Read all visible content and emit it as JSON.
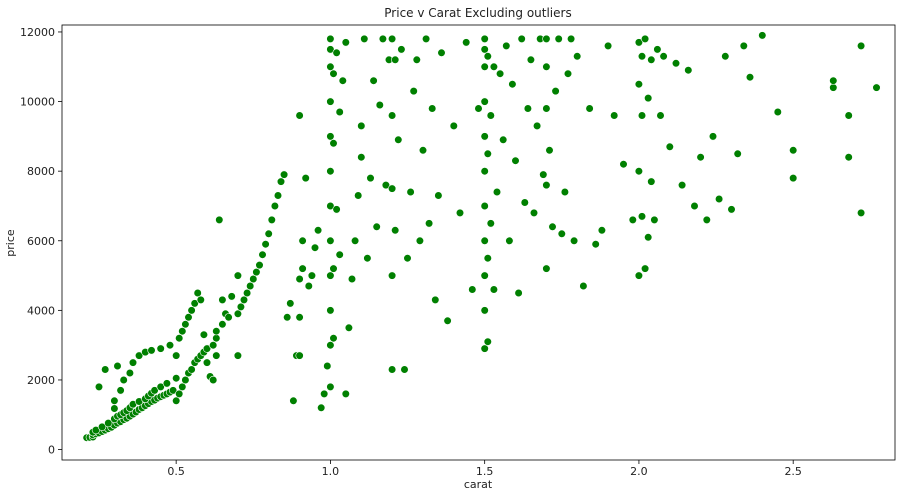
{
  "chart_data": {
    "type": "scatter",
    "title": "Price v Carat Excluding outliers",
    "xlabel": "carat",
    "ylabel": "price",
    "xlim": [
      0.13,
      2.83
    ],
    "ylim": [
      -300,
      12200
    ],
    "xticks": [
      0.5,
      1.0,
      1.5,
      2.0,
      2.5
    ],
    "xtick_labels": [
      "0.5",
      "1.0",
      "1.5",
      "2.0",
      "2.5"
    ],
    "yticks": [
      0,
      2000,
      4000,
      6000,
      8000,
      10000,
      12000
    ],
    "ytick_labels": [
      "0",
      "2000",
      "4000",
      "6000",
      "8000",
      "10000",
      "12000"
    ],
    "grid": false,
    "marker_color": "#008000",
    "marker_edge": "#ffffff",
    "series": [
      {
        "x": [
          0.21,
          0.22,
          0.23,
          0.23,
          0.24,
          0.25,
          0.26,
          0.27,
          0.28,
          0.29,
          0.3,
          0.31,
          0.32,
          0.33,
          0.34,
          0.35,
          0.36,
          0.37,
          0.38,
          0.39,
          0.4,
          0.41,
          0.42,
          0.43,
          0.44,
          0.45,
          0.46,
          0.47,
          0.48,
          0.49,
          0.23,
          0.24,
          0.26,
          0.28,
          0.3,
          0.3,
          0.31,
          0.32,
          0.33,
          0.34,
          0.35,
          0.36,
          0.38,
          0.4,
          0.41,
          0.42,
          0.43,
          0.45,
          0.47,
          0.5,
          0.25,
          0.27,
          0.3,
          0.31,
          0.32,
          0.33,
          0.35,
          0.36,
          0.38,
          0.4,
          0.42,
          0.45,
          0.48,
          0.5,
          0.51,
          0.52,
          0.53,
          0.54,
          0.55,
          0.56,
          0.57,
          0.58,
          0.59,
          0.6,
          0.61,
          0.62,
          0.63,
          0.64,
          0.65,
          0.66,
          0.68,
          0.7,
          0.5,
          0.51,
          0.52,
          0.53,
          0.54,
          0.55,
          0.56,
          0.57,
          0.58,
          0.59,
          0.6,
          0.62,
          0.63,
          0.63,
          0.65,
          0.67,
          0.7,
          0.7,
          0.71,
          0.72,
          0.73,
          0.74,
          0.75,
          0.76,
          0.77,
          0.78,
          0.79,
          0.8,
          0.81,
          0.82,
          0.83,
          0.84,
          0.85,
          0.86,
          0.87,
          0.88,
          0.89,
          0.9,
          0.9,
          0.9,
          0.9,
          0.91,
          0.91,
          0.92,
          0.93,
          0.94,
          0.95,
          0.96,
          0.97,
          0.98,
          0.99,
          1.0,
          1.0,
          1.0,
          1.0,
          1.0,
          1.0,
          1.0,
          1.0,
          1.0,
          1.0,
          1.0,
          1.0,
          1.01,
          1.01,
          1.01,
          1.01,
          1.02,
          1.02,
          1.03,
          1.03,
          1.04,
          1.05,
          1.05,
          1.06,
          1.07,
          1.08,
          1.09,
          1.1,
          1.1,
          1.11,
          1.12,
          1.13,
          1.14,
          1.15,
          1.16,
          1.17,
          1.18,
          1.19,
          1.2,
          1.2,
          1.2,
          1.2,
          1.2,
          1.21,
          1.21,
          1.22,
          1.23,
          1.24,
          1.25,
          1.26,
          1.27,
          1.28,
          1.29,
          1.3,
          1.31,
          1.32,
          1.33,
          1.34,
          1.35,
          1.36,
          1.38,
          1.4,
          1.42,
          1.44,
          1.46,
          1.48,
          1.5,
          1.5,
          1.5,
          1.5,
          1.5,
          1.5,
          1.5,
          1.5,
          1.5,
          1.5,
          1.5,
          1.51,
          1.51,
          1.51,
          1.51,
          1.52,
          1.52,
          1.53,
          1.53,
          1.54,
          1.55,
          1.56,
          1.57,
          1.58,
          1.59,
          1.6,
          1.61,
          1.62,
          1.63,
          1.64,
          1.65,
          1.66,
          1.67,
          1.68,
          1.69,
          1.7,
          1.7,
          1.7,
          1.7,
          1.7,
          1.71,
          1.72,
          1.73,
          1.74,
          1.75,
          1.76,
          1.77,
          1.78,
          1.79,
          1.8,
          1.82,
          1.84,
          1.86,
          1.88,
          1.9,
          1.92,
          1.95,
          1.98,
          2.0,
          2.0,
          2.0,
          2.0,
          2.01,
          2.01,
          2.01,
          2.02,
          2.02,
          2.03,
          2.03,
          2.04,
          2.04,
          2.05,
          2.06,
          2.07,
          2.08,
          2.1,
          2.12,
          2.14,
          2.16,
          2.18,
          2.2,
          2.22,
          2.24,
          2.26,
          2.28,
          2.3,
          2.32,
          2.34,
          2.36,
          2.4,
          2.45,
          2.5,
          2.5,
          2.63,
          2.63,
          2.68,
          2.68,
          2.72,
          2.72,
          2.77
        ],
        "y": [
          340,
          350,
          360,
          420,
          450,
          480,
          520,
          560,
          600,
          640,
          700,
          760,
          800,
          860,
          900,
          960,
          1020,
          1080,
          1150,
          1200,
          1260,
          1320,
          1380,
          1420,
          1480,
          1520,
          1560,
          1600,
          1650,
          1700,
          500,
          560,
          650,
          760,
          880,
          1180,
          960,
          1000,
          1060,
          1120,
          1200,
          1300,
          1380,
          1460,
          1540,
          1620,
          1700,
          1800,
          1900,
          2050,
          1800,
          2300,
          1400,
          2400,
          1700,
          2000,
          2200,
          2500,
          2700,
          2800,
          2850,
          2900,
          3000,
          2700,
          3200,
          3400,
          3600,
          3800,
          4000,
          4200,
          4500,
          4300,
          3300,
          2500,
          2100,
          2000,
          2700,
          6600,
          4300,
          3900,
          4400,
          5000,
          1400,
          1600,
          1800,
          2000,
          2200,
          2300,
          2500,
          2600,
          2700,
          2800,
          2900,
          3000,
          3200,
          3400,
          3600,
          3800,
          2700,
          3900,
          4100,
          4300,
          4500,
          4700,
          4900,
          5100,
          5300,
          5600,
          5900,
          6200,
          6600,
          7000,
          7300,
          7700,
          7900,
          3800,
          4200,
          1400,
          2700,
          9600,
          2700,
          3800,
          4900,
          5200,
          6000,
          7800,
          4700,
          5000,
          5800,
          6300,
          1200,
          1600,
          2400,
          3000,
          4000,
          5000,
          6000,
          7000,
          8000,
          9000,
          10000,
          11000,
          11800,
          11500,
          1800,
          3200,
          5200,
          8800,
          10800,
          6900,
          11400,
          5600,
          9700,
          10600,
          11700,
          1600,
          3500,
          4900,
          6000,
          7300,
          8400,
          9300,
          11800,
          5500,
          7800,
          10600,
          6400,
          9900,
          11800,
          7600,
          11200,
          2300,
          5000,
          7500,
          9600,
          11800,
          11200,
          6300,
          8900,
          11500,
          2300,
          5500,
          7400,
          10300,
          11200,
          6000,
          8600,
          11800,
          6500,
          9800,
          4300,
          7300,
          11400,
          3700,
          9300,
          6800,
          11700,
          4600,
          9800,
          2900,
          4000,
          5000,
          6000,
          7000,
          8000,
          9000,
          10000,
          11000,
          11500,
          11800,
          3100,
          5500,
          8500,
          11300,
          6500,
          9600,
          4600,
          11000,
          7400,
          10800,
          8900,
          11600,
          6000,
          10500,
          8300,
          4500,
          11800,
          7100,
          9800,
          11200,
          6800,
          9300,
          11800,
          7900,
          5200,
          7600,
          9800,
          11000,
          11800,
          8600,
          6400,
          10300,
          11800,
          6200,
          7400,
          10800,
          11800,
          6000,
          11300,
          4700,
          9800,
          5900,
          6300,
          11600,
          9600,
          8200,
          6600,
          5000,
          8000,
          10500,
          11700,
          6700,
          9600,
          11300,
          5200,
          11800,
          6100,
          10100,
          7700,
          11200,
          6600,
          11500,
          9600,
          11300,
          8700,
          11100,
          7600,
          10900,
          7000,
          8400,
          6600,
          9000,
          7200,
          11300,
          6900,
          8500,
          11600,
          10700,
          11900,
          9700,
          8600,
          7800,
          10400,
          10600,
          8400,
          9600,
          6800,
          11600,
          10400
        ]
      }
    ]
  }
}
